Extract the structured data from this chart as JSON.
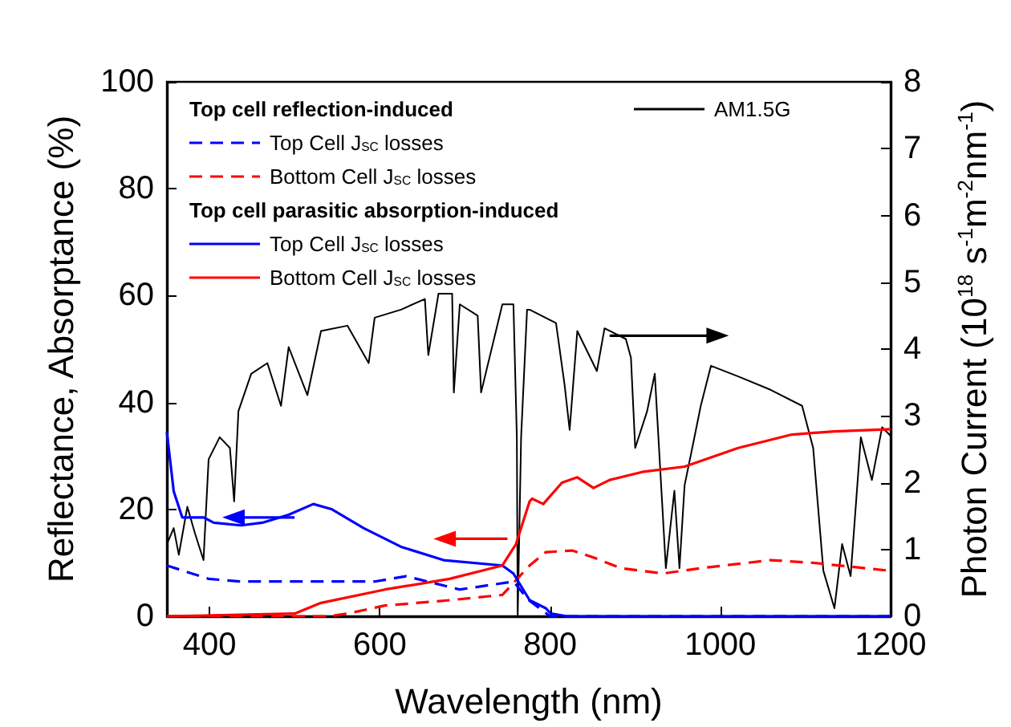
{
  "chart_data": {
    "type": "line",
    "xlabel": "Wavelength (nm)",
    "ylabel": "Reflectance, Absorptance (%)",
    "y2label": "Photon Current (10$^{18}$ s$^{-1}$m$^{-2}$nm$^{-1}$)",
    "xlim": [
      350,
      1200
    ],
    "xticks": [
      400,
      600,
      800,
      1000,
      1200
    ],
    "ylim": [
      0,
      100
    ],
    "yticks": [
      0,
      20,
      40,
      60,
      80,
      100
    ],
    "y2lim": [
      0,
      8
    ],
    "y2ticks": [
      0,
      1,
      2,
      3,
      4,
      5,
      6,
      7,
      8
    ],
    "grid": false,
    "legend": "top left",
    "marker": "none",
    "annotations": [
      "Top cell reflection-induced",
      "Top cell parasitic absorption-induced"
    ],
    "series": [
      {
        "name": "Top Cell J$_{SC}$ losses",
        "color": "#0000ff",
        "line_style": "dashed",
        "x": [
          350,
          399,
          437,
          594,
          631,
          694,
          757,
          775,
          800,
          1200
        ],
        "values": [
          9.5,
          7.0,
          6.5,
          6.5,
          7.5,
          5.0,
          6.5,
          3,
          0,
          0
        ]
      },
      {
        "name": "Bottom Cell J$_{SC}$ losses",
        "color": "#ff0000",
        "line_style": "dashed",
        "x": [
          350,
          540,
          562,
          606,
          682,
          744,
          776,
          795,
          826,
          851,
          883,
          933,
          977,
          1059,
          1109,
          1200
        ],
        "values": [
          0,
          0,
          0.5,
          2.0,
          3.0,
          4.0,
          9.5,
          12,
          12.3,
          11,
          9.0,
          8.0,
          9.0,
          10.5,
          10.0,
          8.5
        ]
      },
      {
        "name": "Top Cell J$_{SC}$ losses",
        "color": "#0000ff",
        "line_style": "solid",
        "x": [
          350,
          358,
          368,
          393,
          405,
          437,
          462,
          493,
          522,
          544,
          581,
          625,
          675,
          744,
          757,
          776,
          795,
          801,
          820,
          1200
        ],
        "values": [
          34.4,
          23.4,
          18.5,
          18.5,
          17.5,
          17.0,
          17.5,
          19.0,
          21.0,
          20.0,
          16.5,
          13.0,
          10.5,
          9.5,
          8.0,
          3.0,
          1.5,
          0.5,
          0,
          0
        ]
      },
      {
        "name": "Bottom Cell J$_{SC}$ losses",
        "color": "#ff0000",
        "line_style": "solid",
        "x": [
          350,
          500,
          531,
          606,
          682,
          744,
          760,
          776,
          779,
          792,
          814,
          832,
          851,
          870,
          908,
          958,
          1021,
          1084,
          1134,
          1200
        ],
        "values": [
          0,
          0.5,
          2.5,
          5.0,
          7.0,
          9.5,
          13.5,
          21.5,
          22,
          21,
          25,
          26,
          24,
          25.5,
          27,
          28,
          31.5,
          34,
          34.6,
          35
        ]
      },
      {
        "name": "AM1.5G",
        "color": "#000000",
        "line_style": "solid",
        "axis": "y2",
        "x": [
          350,
          358,
          364,
          374,
          383,
          393,
          399,
          412,
          424,
          429,
          434,
          449,
          468,
          484,
          493,
          515,
          531,
          562,
          587,
          594,
          625,
          653,
          657,
          669,
          685,
          687,
          694,
          715,
          719,
          744,
          757,
          761,
          762,
          766,
          773,
          776,
          807,
          817,
          823,
          832,
          855,
          864,
          889,
          895,
          900,
          914,
          923,
          936,
          946,
          952,
          958,
          967,
          977,
          989,
          1021,
          1059,
          1096,
          1109,
          1121,
          1134,
          1143,
          1153,
          1165,
          1178,
          1190,
          1200
        ],
        "values": [
          1.08,
          1.32,
          0.92,
          1.64,
          1.24,
          0.84,
          2.35,
          2.68,
          2.52,
          1.72,
          3.07,
          3.63,
          3.79,
          3.15,
          4.03,
          3.31,
          4.27,
          4.35,
          3.79,
          4.47,
          4.59,
          4.75,
          3.91,
          4.83,
          4.83,
          3.35,
          4.67,
          4.5,
          3.35,
          4.67,
          4.67,
          2.68,
          0,
          2.68,
          4.59,
          4.59,
          4.39,
          3.47,
          2.79,
          4.27,
          3.67,
          4.31,
          4.15,
          3.87,
          2.52,
          3.07,
          3.63,
          0.72,
          1.88,
          0.72,
          1.96,
          2.52,
          3.15,
          3.75,
          3.59,
          3.39,
          3.15,
          2.52,
          0.68,
          0.12,
          1.08,
          0.6,
          2.68,
          2.04,
          2.83,
          2.7
        ]
      }
    ]
  }
}
